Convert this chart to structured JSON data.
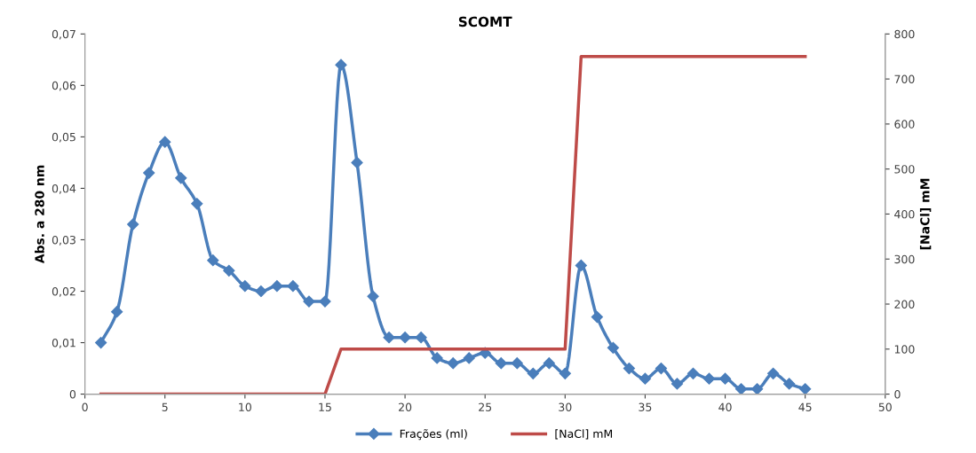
{
  "chart_data": {
    "type": "line",
    "title": "SCOMT",
    "ylabel": "Abs. a 280 nm",
    "y2label": "[NaCl] mM",
    "x": [
      1,
      2,
      3,
      4,
      5,
      6,
      7,
      8,
      9,
      10,
      11,
      12,
      13,
      14,
      15,
      16,
      17,
      18,
      19,
      20,
      21,
      22,
      23,
      24,
      25,
      26,
      27,
      28,
      29,
      30,
      31,
      32,
      33,
      34,
      35,
      36,
      37,
      38,
      39,
      40,
      41,
      42,
      43,
      44,
      45
    ],
    "series": [
      {
        "name": "Frações (ml)",
        "color": "#4a7ebb",
        "marker": "diamond",
        "values": [
          0.01,
          0.016,
          0.033,
          0.043,
          0.049,
          0.042,
          0.037,
          0.026,
          0.024,
          0.021,
          0.02,
          0.021,
          0.021,
          0.018,
          0.018,
          0.064,
          0.045,
          0.019,
          0.011,
          0.011,
          0.011,
          0.007,
          0.006,
          0.007,
          0.008,
          0.006,
          0.006,
          0.004,
          0.006,
          0.004,
          0.025,
          0.015,
          0.009,
          0.005,
          0.003,
          0.005,
          0.002,
          0.004,
          0.003,
          0.003,
          0.001,
          0.001,
          0.004,
          0.002,
          0.001
        ]
      },
      {
        "name": "[NaCl] mM",
        "color": "#be4b48",
        "marker": "none",
        "axis": "y2",
        "x": [
          1,
          15,
          16,
          30,
          31,
          45
        ],
        "values": [
          0,
          0,
          100,
          100,
          750,
          750
        ]
      }
    ],
    "xlim": [
      0,
      50
    ],
    "xticks": [
      0,
      5,
      10,
      15,
      20,
      25,
      30,
      35,
      40,
      45,
      50
    ],
    "ylim": [
      0,
      0.07
    ],
    "yticks": [
      0,
      {
        "value": 0.01,
        "label": "0,01"
      },
      {
        "value": 0.02,
        "label": "0,02"
      },
      {
        "value": 0.03,
        "label": "0,03"
      },
      {
        "value": 0.04,
        "label": "0,04"
      },
      {
        "value": 0.05,
        "label": "0,05"
      },
      {
        "value": 0.06,
        "label": "0,06"
      },
      {
        "value": 0.07,
        "label": "0,07"
      }
    ],
    "y2lim": [
      0,
      800
    ],
    "y2ticks": [
      0,
      100,
      200,
      300,
      400,
      500,
      600,
      700,
      800
    ],
    "legend": "bottom",
    "grid": false,
    "line_style": "solid"
  }
}
